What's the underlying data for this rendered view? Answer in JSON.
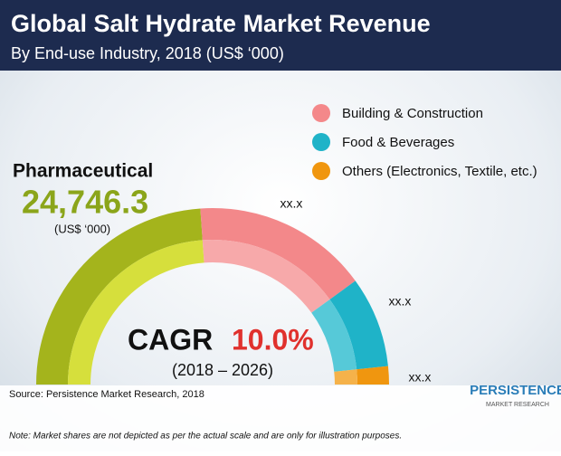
{
  "header": {
    "title": "Global Salt Hydrate Market Revenue",
    "subtitle": "By End-use Industry, 2018 (US$ ‘000)"
  },
  "legend": [
    {
      "label": "Building & Construction"
    },
    {
      "label": "Food & Beverages"
    },
    {
      "label": "Others (Electronics, Textile, etc.)"
    }
  ],
  "highlight": {
    "label": "Pharmaceutical",
    "value": "24,746.3",
    "unit": "(US$ ‘000)"
  },
  "segment_labels": [
    "xx.x",
    "xx.x",
    "xx.x"
  ],
  "cagr": {
    "label": "CAGR",
    "value": "10.0%",
    "period": "(2018 – 2026)"
  },
  "footer": {
    "source": "Source: Persistence Market Research, 2018",
    "note": "Note: Market shares are not depicted as per the actual scale and are only for illustration purposes."
  },
  "logo": {
    "name": "PERSISTENCE",
    "tagline": "MARKET RESEARCH"
  }
}
